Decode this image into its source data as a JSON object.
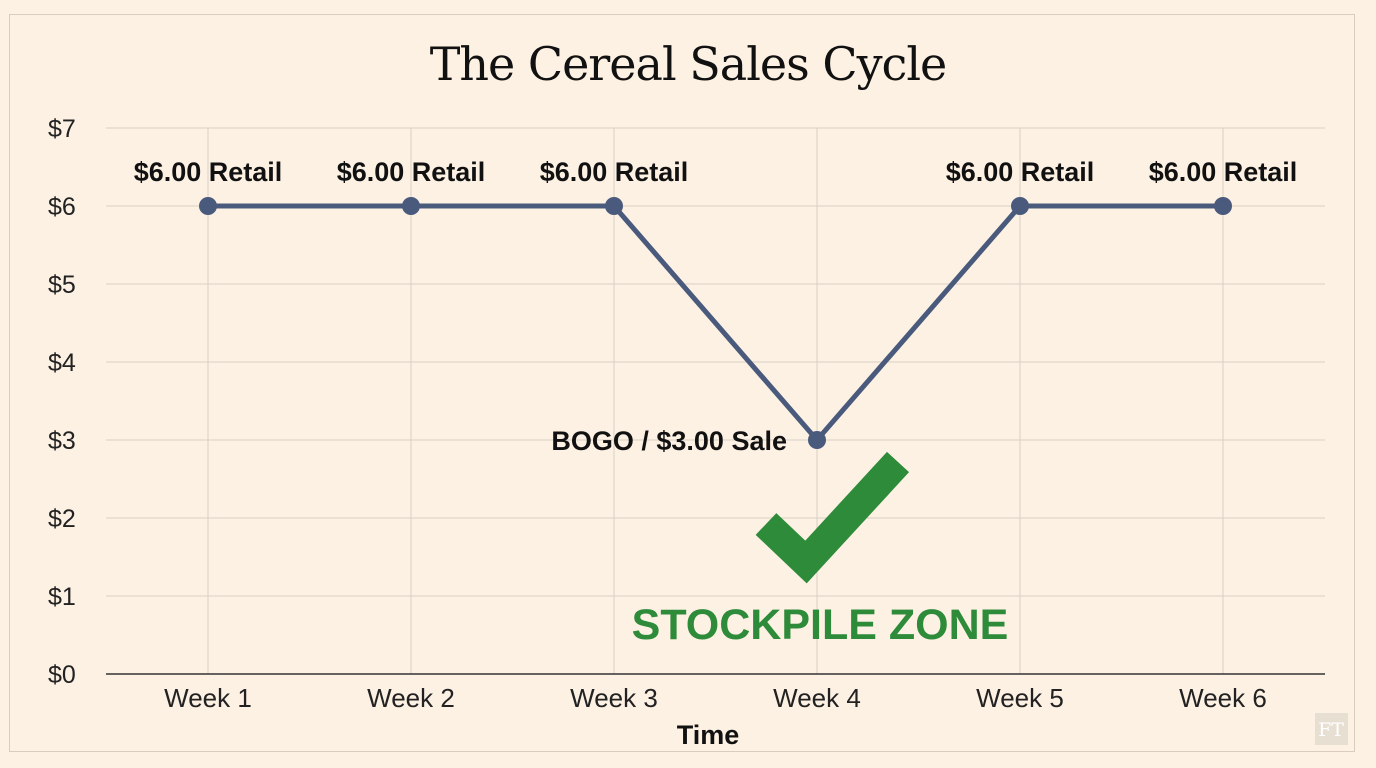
{
  "chart_data": {
    "type": "line",
    "title": "The Cereal Sales Cycle",
    "xlabel": "Time",
    "ylabel": "",
    "categories": [
      "Week 1",
      "Week 2",
      "Week 3",
      "Week 4",
      "Week 5",
      "Week 6"
    ],
    "series": [
      {
        "values": [
          6,
          6,
          6,
          3,
          6,
          6
        ]
      }
    ],
    "data_labels": [
      "$6.00 Retail",
      "$6.00 Retail",
      "$6.00 Retail",
      "BOGO / $3.00 Sale",
      "$6.00 Retail",
      "$6.00 Retail"
    ],
    "ylim": [
      0,
      7
    ],
    "yticks": [
      0,
      1,
      2,
      3,
      4,
      5,
      6,
      7
    ],
    "ytick_labels": [
      "$0",
      "$1",
      "$2",
      "$3",
      "$4",
      "$5",
      "$6",
      "$7"
    ],
    "grid": true,
    "annotation": {
      "text": "STOCKPILE ZONE",
      "icon": "checkmark-icon",
      "color": "#2e8b3a",
      "category": "Week 4"
    },
    "colors": {
      "line": "#4a5a7c",
      "background": "#fdf1e4"
    }
  },
  "watermark": {
    "text": "FT"
  }
}
